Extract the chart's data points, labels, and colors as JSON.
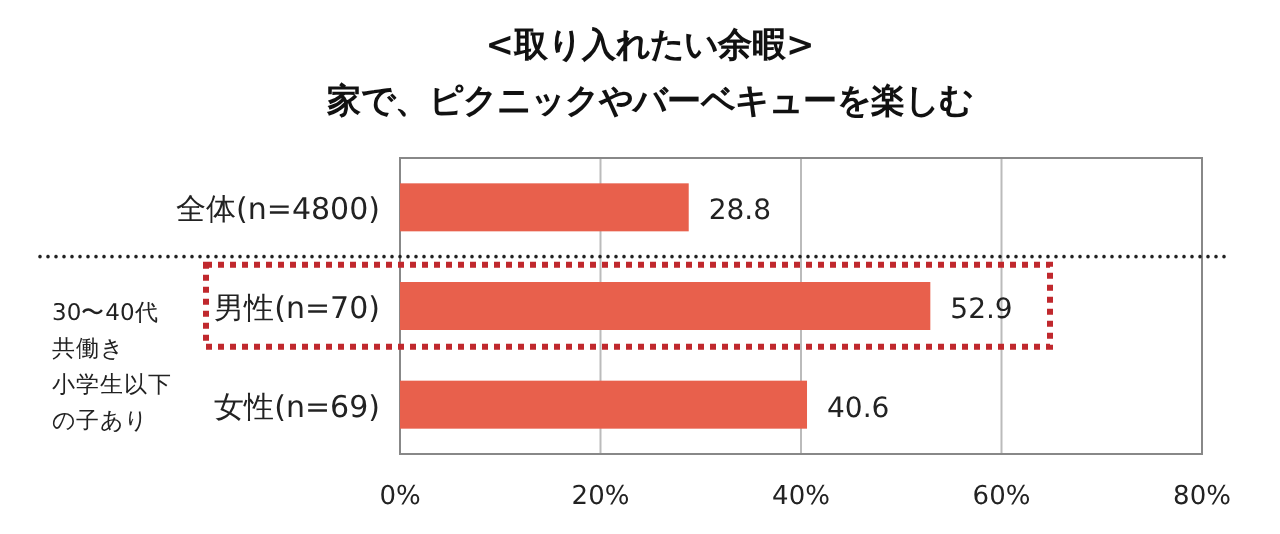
{
  "chart_data": {
    "type": "bar",
    "orientation": "horizontal",
    "title": "<取り入れたい余暇>",
    "subtitle": "家で、ピクニックやバーベキューを楽しむ",
    "categories": [
      "全体(n=4800)",
      "男性(n=70)",
      "女性(n=69)"
    ],
    "values": [
      28.8,
      52.9,
      40.6
    ],
    "color": "#e8604c",
    "data_labels": true,
    "grid": "x",
    "xlim": [
      0,
      80
    ],
    "xticks": [
      {
        "value": 0,
        "label": "0%"
      },
      {
        "value": 20,
        "label": "20%"
      },
      {
        "value": 40,
        "label": "40%"
      },
      {
        "value": 60,
        "label": "60%"
      },
      {
        "value": 80,
        "label": "80%"
      }
    ],
    "annotations": [
      "30〜40代",
      "共働き",
      "小学生以下",
      "の子あり"
    ]
  }
}
